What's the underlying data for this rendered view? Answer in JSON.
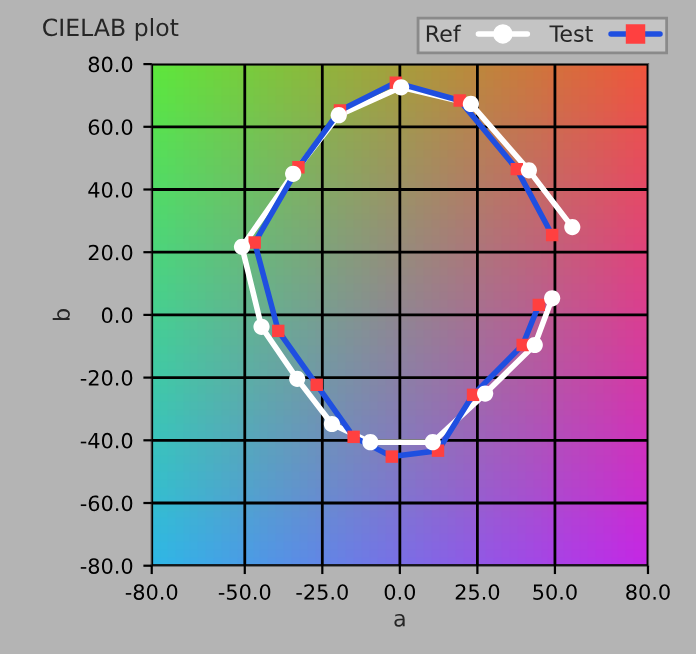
{
  "chart_data": {
    "type": "line",
    "title": "CIELAB plot",
    "xlabel": "a",
    "ylabel": "b",
    "xlim": [
      -80,
      80
    ],
    "ylim": [
      -80,
      80
    ],
    "xticks": [
      {
        "value": -80,
        "label": "-80.0"
      },
      {
        "value": -50,
        "label": "-50.0"
      },
      {
        "value": -25,
        "label": "-25.0"
      },
      {
        "value": 0,
        "label": "0.0"
      },
      {
        "value": 25,
        "label": "25.0"
      },
      {
        "value": 50,
        "label": "50.0"
      },
      {
        "value": 80,
        "label": "80.0"
      }
    ],
    "yticks": [
      {
        "value": -80,
        "label": "-80.0"
      },
      {
        "value": -60,
        "label": "-60.0"
      },
      {
        "value": -40,
        "label": "-40.0"
      },
      {
        "value": -20,
        "label": "-20.0"
      },
      {
        "value": 0,
        "label": "0.0"
      },
      {
        "value": 20,
        "label": "20.0"
      },
      {
        "value": 40,
        "label": "40.0"
      },
      {
        "value": 60,
        "label": "60.0"
      },
      {
        "value": 80,
        "label": "80.0"
      }
    ],
    "grid": true,
    "legend": "top right",
    "series": [
      {
        "name": "Ref",
        "color": "#ffffff",
        "marker": "circle",
        "x": [
          55.6,
          41.6,
          22.9,
          0.4,
          -19.7,
          -34.4,
          -50.9,
          -44.6,
          -33.1,
          -21.9,
          -9.5,
          10.6,
          27.5,
          43.5,
          49.1
        ],
        "values": [
          28.0,
          46.1,
          67.3,
          72.6,
          63.7,
          45.0,
          21.7,
          -3.8,
          -20.4,
          -34.8,
          -40.6,
          -40.6,
          -25.1,
          -9.6,
          5.3
        ]
      },
      {
        "name": "Test",
        "color": "#1f4fe0",
        "marker": "square",
        "colors": [
          "#ff4040",
          "#ff4040",
          "#ff4040",
          "#ff4040",
          "#ff4040",
          "#ff4040",
          "#ff4040",
          "#ff4040",
          "#ff4040",
          "#ff4040",
          "#ff4040",
          "#ff4040",
          "#ff4040",
          "#ff4040",
          "#ff4040"
        ],
        "x": [
          49.1,
          37.7,
          19.3,
          -1.3,
          -19.3,
          -32.7,
          -46.8,
          -39.2,
          -26.8,
          -14.9,
          -2.6,
          12.3,
          23.6,
          39.6,
          44.8
        ],
        "values": [
          25.5,
          46.5,
          68.4,
          74.1,
          65.2,
          47.1,
          23.1,
          -5.1,
          -22.3,
          -38.9,
          -45.2,
          -43.3,
          -25.5,
          -9.6,
          3.2
        ]
      }
    ]
  }
}
